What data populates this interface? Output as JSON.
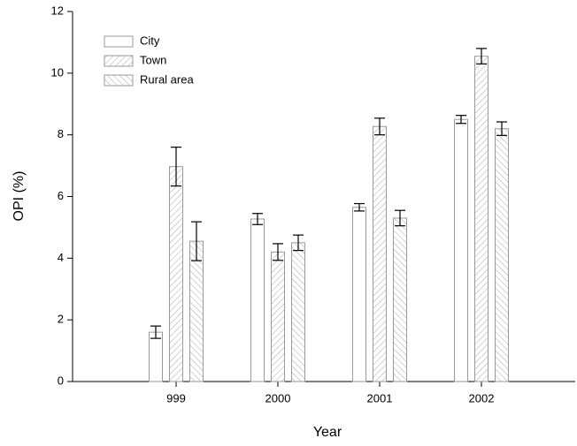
{
  "chart_data": {
    "type": "bar",
    "x_label": "Year",
    "y_label": "OPI (%)",
    "categories": [
      "999",
      "2000",
      "2001",
      "2002"
    ],
    "series": [
      {
        "name": "City",
        "color": "#9a9a9a",
        "hatch": "none",
        "values": [
          1.6,
          5.27,
          5.65,
          8.5
        ],
        "errors": [
          0.2,
          0.18,
          0.12,
          0.13
        ]
      },
      {
        "name": "Town",
        "color": "#9a9a9a",
        "hatch": "/",
        "values": [
          6.97,
          4.2,
          8.27,
          10.55
        ],
        "errors": [
          0.63,
          0.27,
          0.27,
          0.25
        ]
      },
      {
        "name": "Rural area",
        "color": "#9a9a9a",
        "hatch": "\\",
        "values": [
          4.55,
          4.5,
          5.3,
          8.2
        ],
        "errors": [
          0.63,
          0.25,
          0.25,
          0.22
        ]
      }
    ],
    "ylim": [
      0,
      12
    ],
    "yticks": [
      0,
      2,
      4,
      6,
      8,
      10,
      12
    ],
    "legend": "upper-left"
  }
}
